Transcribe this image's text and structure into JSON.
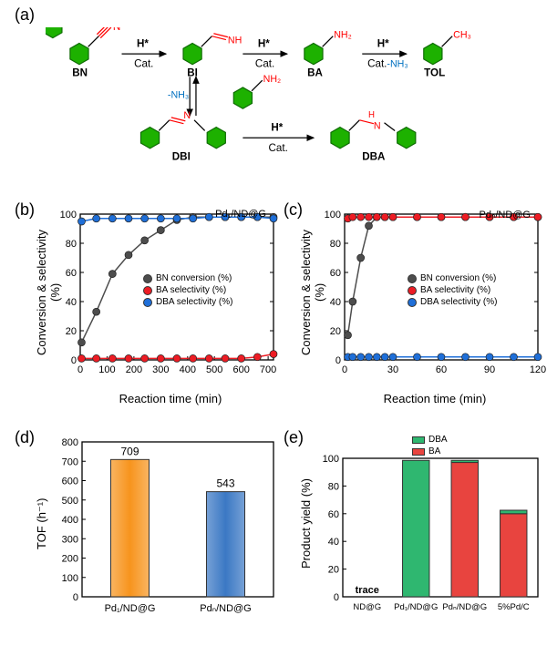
{
  "labels": {
    "a": "(a)",
    "b": "(b)",
    "c": "(c)",
    "d": "(d)",
    "e": "(e)"
  },
  "scheme": {
    "molecules": [
      "BN",
      "BI",
      "BA",
      "TOL",
      "DBI",
      "DBA"
    ],
    "arrow_labels": {
      "H": "H*",
      "cat": "Cat.",
      "nh3_blue": "-NH₃"
    },
    "benzene_color": "#1db100",
    "nitrile_color": "#ff0000",
    "nh_color": "#0070c0",
    "double_arrow": true
  },
  "chart_b": {
    "title_inside": "Pd₁/ND@G",
    "ylabel": "Conversion & selectivity (%)",
    "xlabel": "Reaction time (min)",
    "xlim": [
      0,
      720
    ],
    "xtick_step": 100,
    "ylim": [
      0,
      100
    ],
    "ytick_step": 20,
    "legend": [
      {
        "label": "BN conversion (%)",
        "color": "#4d4d4d"
      },
      {
        "label": "BA selectivity (%)",
        "color": "#ed1c24"
      },
      {
        "label": "DBA selectivity (%)",
        "color": "#1f6fd8"
      }
    ],
    "series": {
      "bn": {
        "x": [
          5,
          60,
          120,
          180,
          240,
          300,
          360,
          420,
          480,
          540,
          600,
          660,
          720
        ],
        "y": [
          12,
          33,
          59,
          72,
          82,
          89,
          96,
          98,
          98,
          98,
          98,
          98,
          98
        ],
        "color": "#4d4d4d"
      },
      "ba": {
        "x": [
          5,
          60,
          120,
          180,
          240,
          300,
          360,
          420,
          480,
          540,
          600,
          660,
          720
        ],
        "y": [
          1,
          1,
          1,
          1,
          1,
          1,
          1,
          1,
          1,
          1,
          1,
          2,
          4
        ],
        "color": "#ed1c24"
      },
      "dba": {
        "x": [
          5,
          60,
          120,
          180,
          240,
          300,
          360,
          420,
          480,
          540,
          600,
          660,
          720
        ],
        "y": [
          95,
          97,
          97,
          97,
          97,
          97,
          97,
          97,
          98,
          98,
          98,
          98,
          97
        ],
        "color": "#1f6fd8"
      }
    },
    "marker_size": 4,
    "line_width": 1.5
  },
  "chart_c": {
    "title_inside": "Pdₙ/ND@G",
    "ylabel": "Conversion & selectivity (%)",
    "xlabel": "Reaction time (min)",
    "xlim": [
      0,
      120
    ],
    "xtick_step": 30,
    "ylim": [
      0,
      100
    ],
    "ytick_step": 20,
    "legend": [
      {
        "label": "BN conversion (%)",
        "color": "#4d4d4d"
      },
      {
        "label": "BA selectivity (%)",
        "color": "#ed1c24"
      },
      {
        "label": "DBA selectivity (%)",
        "color": "#1f6fd8"
      }
    ],
    "series": {
      "bn": {
        "x": [
          2,
          5,
          10,
          15,
          20,
          25,
          30,
          45,
          60,
          75,
          90,
          105,
          120
        ],
        "y": [
          17,
          40,
          70,
          92,
          98,
          98,
          98,
          98,
          98,
          98,
          98,
          98,
          98
        ],
        "color": "#4d4d4d"
      },
      "ba": {
        "x": [
          2,
          5,
          10,
          15,
          20,
          25,
          30,
          45,
          60,
          75,
          90,
          105,
          120
        ],
        "y": [
          97,
          98,
          98,
          98,
          98,
          98,
          98,
          98,
          98,
          98,
          98,
          98,
          98
        ],
        "color": "#ed1c24"
      },
      "dba": {
        "x": [
          2,
          5,
          10,
          15,
          20,
          25,
          30,
          45,
          60,
          75,
          90,
          105,
          120
        ],
        "y": [
          2,
          2,
          2,
          2,
          2,
          2,
          2,
          2,
          2,
          2,
          2,
          2,
          2
        ],
        "color": "#1f6fd8"
      }
    },
    "marker_size": 4,
    "line_width": 1.5
  },
  "chart_d": {
    "ylabel": "TOF (h⁻¹)",
    "ylim": [
      0,
      800
    ],
    "ytick_step": 100,
    "categories": [
      "Pd₁/ND@G",
      "Pdₙ/ND@G"
    ],
    "values": [
      709,
      543
    ],
    "value_labels": [
      "709",
      "543"
    ],
    "bar_colors": [
      "#f7941d",
      "#3b78c4"
    ],
    "bar_border": "#333333",
    "bar_width": 0.4
  },
  "chart_e": {
    "ylabel": "Product yield (%)",
    "ylim": [
      0,
      100
    ],
    "ytick_step": 20,
    "categories": [
      "ND@G",
      "Pd₁/ND@G",
      "Pdₙ/ND@G",
      "5%Pd/C"
    ],
    "legend": [
      {
        "label": "DBA",
        "color": "#2fb770"
      },
      {
        "label": "BA",
        "color": "#e8443f"
      }
    ],
    "stacks": [
      {
        "ba": 0,
        "dba": 0,
        "note": "trace"
      },
      {
        "ba": 0,
        "dba": 98.5
      },
      {
        "ba": 97,
        "dba": 1.5
      },
      {
        "ba": 60,
        "dba": 2.5
      }
    ],
    "bar_border": "#333333",
    "bar_width": 0.55
  },
  "colors": {
    "axis": "#000000",
    "background": "#ffffff"
  },
  "fontsizes": {
    "axis_label": 13,
    "tick": 11,
    "legend": 10,
    "panel": 18
  }
}
